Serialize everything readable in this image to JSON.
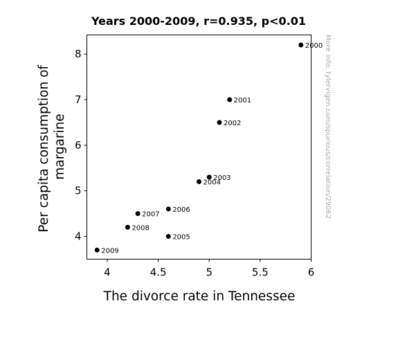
{
  "chart_data": {
    "type": "scatter",
    "title": "Years 2000-2009, r=0.935, p<0.01",
    "xlabel": "The divorce rate in Tennessee",
    "ylabel_lines": [
      "Per capita consumption of",
      "margarine"
    ],
    "xlim": [
      3.8,
      6.0
    ],
    "ylim": [
      3.5,
      8.42
    ],
    "xticks": [
      "4",
      "4.5",
      "5",
      "5.5",
      "6"
    ],
    "yticks": [
      "4",
      "5",
      "6",
      "7",
      "8"
    ],
    "grid": false,
    "marker_color": "#000000",
    "points": [
      {
        "label": "2000",
        "x": 5.9,
        "y": 8.2
      },
      {
        "label": "2001",
        "x": 5.2,
        "y": 7.0
      },
      {
        "label": "2002",
        "x": 5.1,
        "y": 6.5
      },
      {
        "label": "2003",
        "x": 5.0,
        "y": 5.3
      },
      {
        "label": "2004",
        "x": 4.9,
        "y": 5.2
      },
      {
        "label": "2005",
        "x": 4.6,
        "y": 4.0
      },
      {
        "label": "2006",
        "x": 4.6,
        "y": 4.6
      },
      {
        "label": "2007",
        "x": 4.3,
        "y": 4.5
      },
      {
        "label": "2008",
        "x": 4.2,
        "y": 4.2
      },
      {
        "label": "2009",
        "x": 3.9,
        "y": 3.7
      }
    ]
  },
  "side_note": "More info: tylervigen.com/spurious/correlation/29062"
}
